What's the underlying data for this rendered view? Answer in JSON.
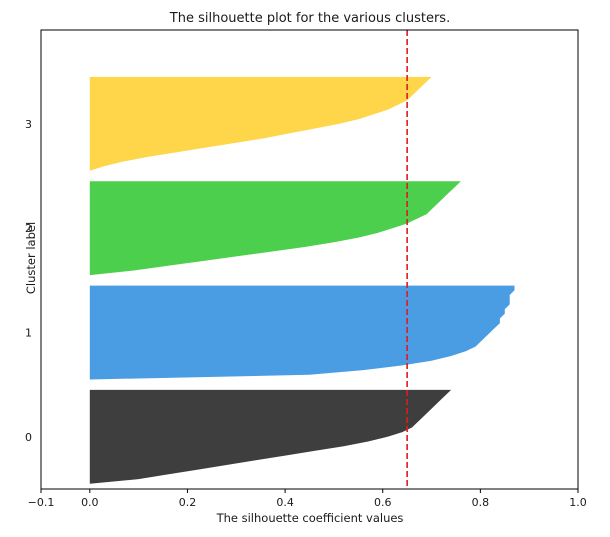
{
  "chart_data": {
    "type": "area",
    "title": "The silhouette plot for the various clusters.",
    "xlabel": "The silhouette coefficient values",
    "ylabel": "Cluster label",
    "xlim": [
      -0.1,
      1.0
    ],
    "ylim": [
      0,
      4.4
    ],
    "x_ticks": [
      -0.1,
      0.0,
      0.2,
      0.4,
      0.6,
      0.8,
      1.0
    ],
    "x_tick_labels": [
      "−0.1",
      "0.0",
      "0.2",
      "0.4",
      "0.6",
      "0.8",
      "1.0"
    ],
    "y_ticks": [
      0.5,
      1.5,
      2.5,
      3.5
    ],
    "y_tick_labels": [
      "0",
      "1",
      "2",
      "3"
    ],
    "grid": false,
    "average_silhouette_score": 0.65,
    "average_line_color": "#e31a1c",
    "series": [
      {
        "name": "0",
        "color": "#3e3e3e",
        "y_range": [
          0.05,
          0.95
        ],
        "values": [
          0.74,
          0.73,
          0.72,
          0.71,
          0.7,
          0.69,
          0.68,
          0.67,
          0.66,
          0.64,
          0.61,
          0.57,
          0.52,
          0.46,
          0.4,
          0.34,
          0.28,
          0.22,
          0.16,
          0.1,
          0.0
        ]
      },
      {
        "name": "1",
        "color": "#4a9de3",
        "y_range": [
          1.05,
          1.95
        ],
        "values": [
          0.87,
          0.87,
          0.86,
          0.86,
          0.86,
          0.85,
          0.85,
          0.84,
          0.84,
          0.83,
          0.82,
          0.81,
          0.8,
          0.79,
          0.77,
          0.74,
          0.7,
          0.64,
          0.56,
          0.45,
          0.0
        ]
      },
      {
        "name": "2",
        "color": "#4ccf4c",
        "y_range": [
          2.05,
          2.95
        ],
        "values": [
          0.76,
          0.75,
          0.74,
          0.73,
          0.72,
          0.71,
          0.7,
          0.69,
          0.67,
          0.65,
          0.62,
          0.59,
          0.55,
          0.5,
          0.44,
          0.37,
          0.3,
          0.23,
          0.16,
          0.09,
          0.0
        ]
      },
      {
        "name": "3",
        "color": "#ffd54a",
        "y_range": [
          3.05,
          3.95
        ],
        "values": [
          0.7,
          0.69,
          0.68,
          0.67,
          0.66,
          0.65,
          0.63,
          0.61,
          0.58,
          0.55,
          0.51,
          0.46,
          0.41,
          0.36,
          0.3,
          0.24,
          0.18,
          0.12,
          0.07,
          0.03,
          0.0
        ]
      }
    ]
  }
}
